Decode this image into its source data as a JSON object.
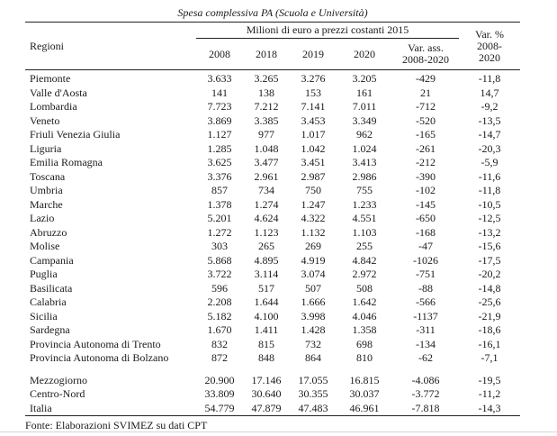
{
  "page": {
    "title": "Spesa complessiva PA (Scuola e Università)",
    "source_note": "Fonte: Elaborazioni SVIMEZ su dati CPT",
    "frame_line_color": "#cdd6dc"
  },
  "table": {
    "region_column_header": "Regioni",
    "group_header": "Milioni di euro a prezzi costanti 2015",
    "year_headers": [
      "2008",
      "2018",
      "2019",
      "2020"
    ],
    "var_ass_header": [
      "Var. ass.",
      "2008-2020"
    ],
    "var_pct_header": [
      "Var. %",
      "2008-",
      "2020"
    ],
    "rows": [
      {
        "name": "Piemonte",
        "values": [
          "3.633",
          "3.265",
          "3.276",
          "3.205",
          "-429",
          "-11,8"
        ]
      },
      {
        "name": "Valle d'Aosta",
        "values": [
          "141",
          "138",
          "153",
          "161",
          "21",
          "14,7"
        ]
      },
      {
        "name": "Lombardia",
        "values": [
          "7.723",
          "7.212",
          "7.141",
          "7.011",
          "-712",
          "-9,2"
        ]
      },
      {
        "name": "Veneto",
        "values": [
          "3.869",
          "3.385",
          "3.453",
          "3.349",
          "-520",
          "-13,5"
        ]
      },
      {
        "name": "Friuli Venezia Giulia",
        "values": [
          "1.127",
          "977",
          "1.017",
          "962",
          "-165",
          "-14,7"
        ]
      },
      {
        "name": "Liguria",
        "values": [
          "1.285",
          "1.048",
          "1.042",
          "1.024",
          "-261",
          "-20,3"
        ]
      },
      {
        "name": "Emilia Romagna",
        "values": [
          "3.625",
          "3.477",
          "3.451",
          "3.413",
          "-212",
          "-5,9"
        ]
      },
      {
        "name": "Toscana",
        "values": [
          "3.376",
          "2.961",
          "2.987",
          "2.986",
          "-390",
          "-11,6"
        ]
      },
      {
        "name": "Umbria",
        "values": [
          "857",
          "734",
          "750",
          "755",
          "-102",
          "-11,8"
        ]
      },
      {
        "name": "Marche",
        "values": [
          "1.378",
          "1.274",
          "1.247",
          "1.233",
          "-145",
          "-10,5"
        ]
      },
      {
        "name": "Lazio",
        "values": [
          "5.201",
          "4.624",
          "4.322",
          "4.551",
          "-650",
          "-12,5"
        ]
      },
      {
        "name": "Abruzzo",
        "values": [
          "1.272",
          "1.123",
          "1.132",
          "1.103",
          "-168",
          "-13,2"
        ]
      },
      {
        "name": "Molise",
        "values": [
          "303",
          "265",
          "269",
          "255",
          "-47",
          "-15,6"
        ]
      },
      {
        "name": "Campania",
        "values": [
          "5.868",
          "4.895",
          "4.919",
          "4.842",
          "-1026",
          "-17,5"
        ]
      },
      {
        "name": "Puglia",
        "values": [
          "3.722",
          "3.114",
          "3.074",
          "2.972",
          "-751",
          "-20,2"
        ]
      },
      {
        "name": "Basilicata",
        "values": [
          "596",
          "517",
          "507",
          "508",
          "-88",
          "-14,8"
        ]
      },
      {
        "name": "Calabria",
        "values": [
          "2.208",
          "1.644",
          "1.666",
          "1.642",
          "-566",
          "-25,6"
        ]
      },
      {
        "name": "Sicilia",
        "values": [
          "5.182",
          "4.100",
          "3.998",
          "4.046",
          "-1137",
          "-21,9"
        ]
      },
      {
        "name": "Sardegna",
        "values": [
          "1.670",
          "1.411",
          "1.428",
          "1.358",
          "-311",
          "-18,6"
        ]
      },
      {
        "name": "Provincia Autonoma di Trento",
        "values": [
          "832",
          "815",
          "732",
          "698",
          "-134",
          "-16,1"
        ]
      },
      {
        "name": "Provincia Autonoma di Bolzano",
        "values": [
          "872",
          "848",
          "864",
          "810",
          "-62",
          "-7,1"
        ]
      }
    ],
    "summary_rows": [
      {
        "name": "Mezzogiorno",
        "values": [
          "20.900",
          "17.146",
          "17.055",
          "16.815",
          "-4.086",
          "-19,5"
        ]
      },
      {
        "name": "Centro-Nord",
        "values": [
          "33.809",
          "30.640",
          "30.355",
          "30.037",
          "-3.772",
          "-11,2"
        ]
      },
      {
        "name": "Italia",
        "values": [
          "54.779",
          "47.879",
          "47.483",
          "46.961",
          "-7.818",
          "-14,3"
        ]
      }
    ]
  }
}
